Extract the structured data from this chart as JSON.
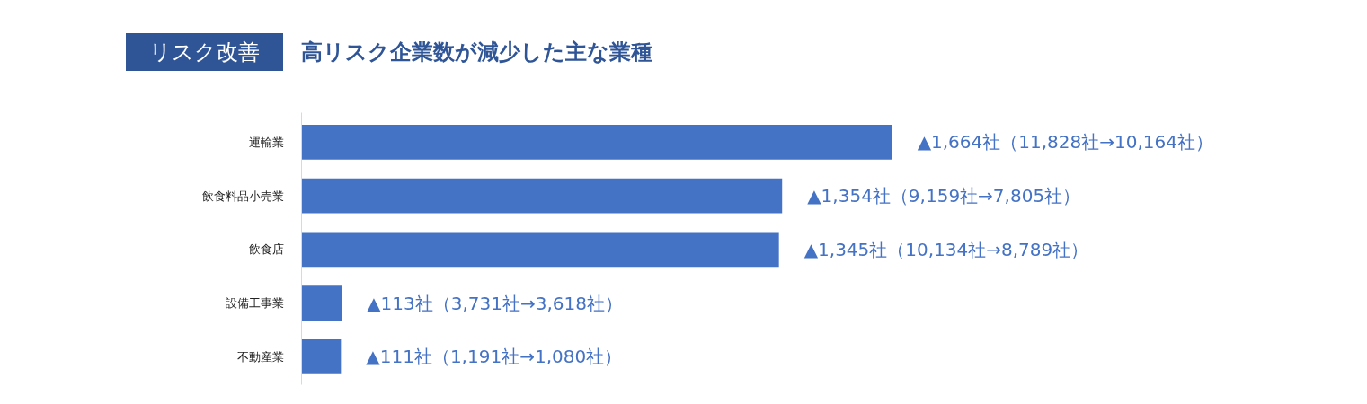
{
  "chart_data": {
    "type": "bar",
    "orientation": "horizontal",
    "title": "高リスク企業数が減少した主な業種",
    "subtitle": "リスク改善",
    "categories": [
      "運輸業",
      "飲食料品小売業",
      "飲食店",
      "設備工事業",
      "不動産業"
    ],
    "values": [
      1664,
      1354,
      1345,
      113,
      111
    ],
    "color": "#4472c4",
    "value_labels": [
      "▲1,664社（11,828社→10,164社）",
      "▲1,354社（9,159社→7,805社）",
      "▲1,345社（10,134社→8,789社）",
      "▲113社（3,731社→3,618社）",
      "▲111社（1,191社→1,080社）"
    ]
  }
}
